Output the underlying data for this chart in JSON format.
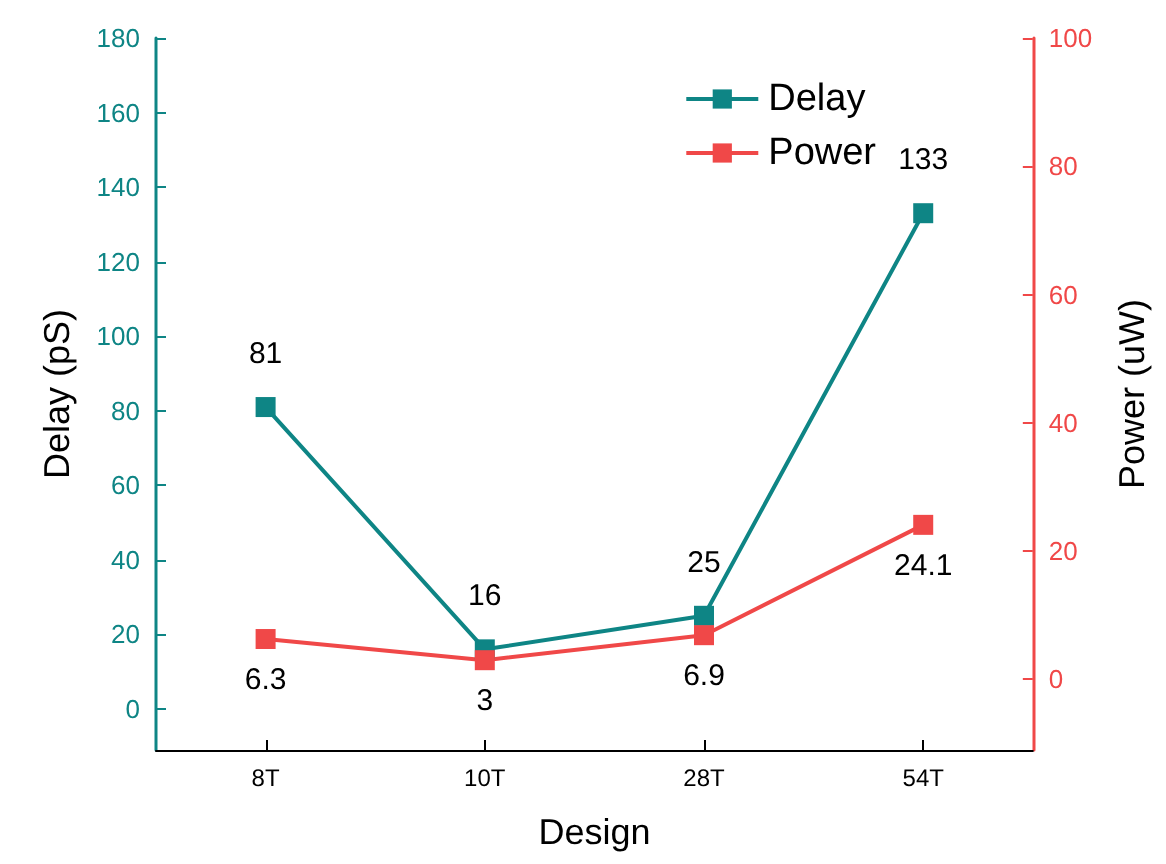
{
  "chart_data": {
    "type": "line",
    "xlabel": "Design",
    "ylabel": "Delay (pS)",
    "y2label": "Power (uW)",
    "categories": [
      "8T",
      "10T",
      "28T",
      "54T"
    ],
    "series": [
      {
        "name": "Delay",
        "color": "#0e8585",
        "values": [
          81,
          16,
          25,
          133
        ]
      },
      {
        "name": "Power",
        "color": "#f04848",
        "values": [
          6.3,
          3,
          6.9,
          24.1
        ],
        "axis": "y2"
      }
    ],
    "ylim": [
      -11,
      180
    ],
    "yticks": [
      0,
      20,
      40,
      60,
      80,
      100,
      120,
      140,
      160,
      180
    ],
    "y2lim": [
      -11,
      100
    ],
    "y2ticks": [
      0,
      20,
      40,
      60,
      80,
      100
    ],
    "data_labels": true,
    "marker": "square",
    "line_style": "solid",
    "grid": false,
    "legend": "top right"
  }
}
